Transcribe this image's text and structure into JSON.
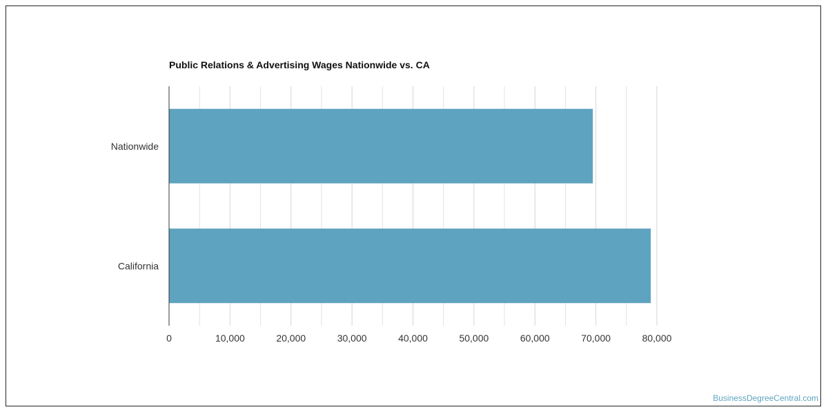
{
  "chart_data": {
    "type": "bar",
    "orientation": "horizontal",
    "title": "Public Relations & Advertising Wages Nationwide vs. CA",
    "categories": [
      "Nationwide",
      "California"
    ],
    "values": [
      69500,
      79000
    ],
    "xlim": [
      0,
      80000
    ],
    "xticks": [
      0,
      10000,
      20000,
      30000,
      40000,
      50000,
      60000,
      70000,
      80000
    ],
    "xtick_labels": [
      "0",
      "10,000",
      "20,000",
      "30,000",
      "40,000",
      "50,000",
      "60,000",
      "70,000",
      "80,000"
    ],
    "grid": true,
    "bar_color": "#5ea3bf",
    "grid_color": "#e2e2e2"
  },
  "watermark": "BusinessDegreeCentral.com"
}
